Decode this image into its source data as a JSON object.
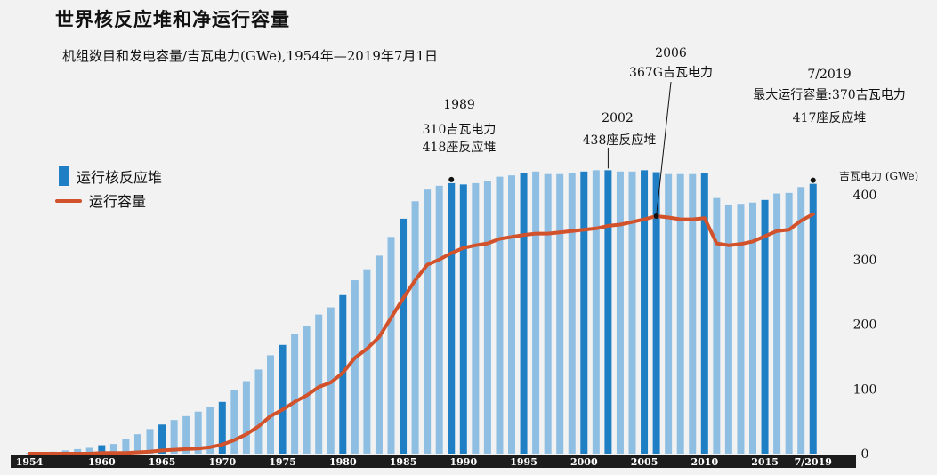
{
  "title": "世界核反应堆和净运行容量",
  "subtitle": "机组数目和发电容量/吉瓦电力(GWe),1954年—2019年7月1日",
  "legend": {
    "bars": "运行核反应堆",
    "line": "运行容量"
  },
  "y_unit": "吉瓦电力 (GWe)",
  "annotations": {
    "a1989": [
      "1989",
      "310吉瓦电力",
      "418座反应堆"
    ],
    "a2002": [
      "2002",
      "438座反应堆"
    ],
    "a2006": [
      "2006",
      "367G吉瓦电力"
    ],
    "a2019": [
      "7/2019",
      "最大运行容量:370吉瓦电力",
      "417座反应堆"
    ]
  },
  "colors": {
    "bar": "#8fbee3",
    "bar_highlight": "#1f7fc5",
    "line": "#d2522b",
    "axis": "#1c1c1c",
    "background": "#f2f2f2"
  },
  "chart_data": {
    "type": "bar",
    "x": [
      1954,
      1955,
      1956,
      1957,
      1958,
      1959,
      1960,
      1961,
      1962,
      1963,
      1964,
      1965,
      1966,
      1967,
      1968,
      1969,
      1970,
      1971,
      1972,
      1973,
      1974,
      1975,
      1976,
      1977,
      1978,
      1979,
      1980,
      1981,
      1982,
      1983,
      1984,
      1985,
      1986,
      1987,
      1988,
      1989,
      1990,
      1991,
      1992,
      1993,
      1994,
      1995,
      1996,
      1997,
      1998,
      1999,
      2000,
      2001,
      2002,
      2003,
      2004,
      2005,
      2006,
      2007,
      2008,
      2009,
      2010,
      2011,
      2012,
      2013,
      2014,
      2015,
      2016,
      2017,
      2018,
      "7/2019"
    ],
    "x_tick_labels": [
      "1954",
      "1960",
      "1965",
      "1970",
      "1975",
      "1980",
      "1985",
      "1990",
      "1995",
      "2000",
      "2005",
      "2010",
      "2015",
      "7/2019"
    ],
    "y_ticks": [
      0,
      100,
      200,
      300,
      400
    ],
    "ylim": [
      0,
      440
    ],
    "highlight_years": [
      1960,
      1965,
      1970,
      1975,
      1980,
      1985,
      1989,
      1990,
      1995,
      2000,
      2002,
      2005,
      2006,
      2010,
      2015,
      "7/2019"
    ],
    "series": [
      {
        "name": "运行核反应堆",
        "type": "bar",
        "values": [
          1,
          2,
          3,
          5,
          7,
          9,
          13,
          15,
          22,
          30,
          38,
          45,
          52,
          58,
          65,
          72,
          80,
          98,
          112,
          130,
          152,
          168,
          185,
          198,
          215,
          226,
          245,
          268,
          285,
          306,
          335,
          363,
          390,
          408,
          414,
          418,
          416,
          418,
          422,
          428,
          430,
          434,
          436,
          432,
          432,
          434,
          436,
          438,
          438,
          436,
          436,
          438,
          435,
          432,
          432,
          432,
          434,
          395,
          385,
          386,
          388,
          392,
          402,
          403,
          412,
          417
        ]
      },
      {
        "name": "运行容量",
        "type": "line",
        "values": [
          0,
          0,
          0,
          0,
          0,
          0,
          1,
          1,
          1,
          2,
          3,
          5,
          6,
          7,
          8,
          10,
          14,
          21,
          30,
          42,
          58,
          68,
          80,
          90,
          103,
          110,
          125,
          148,
          162,
          180,
          210,
          240,
          268,
          292,
          300,
          310,
          318,
          322,
          325,
          332,
          335,
          338,
          340,
          340,
          342,
          344,
          346,
          348,
          352,
          354,
          358,
          362,
          367,
          365,
          362,
          362,
          364,
          325,
          322,
          324,
          328,
          336,
          344,
          346,
          360,
          370
        ]
      }
    ]
  }
}
